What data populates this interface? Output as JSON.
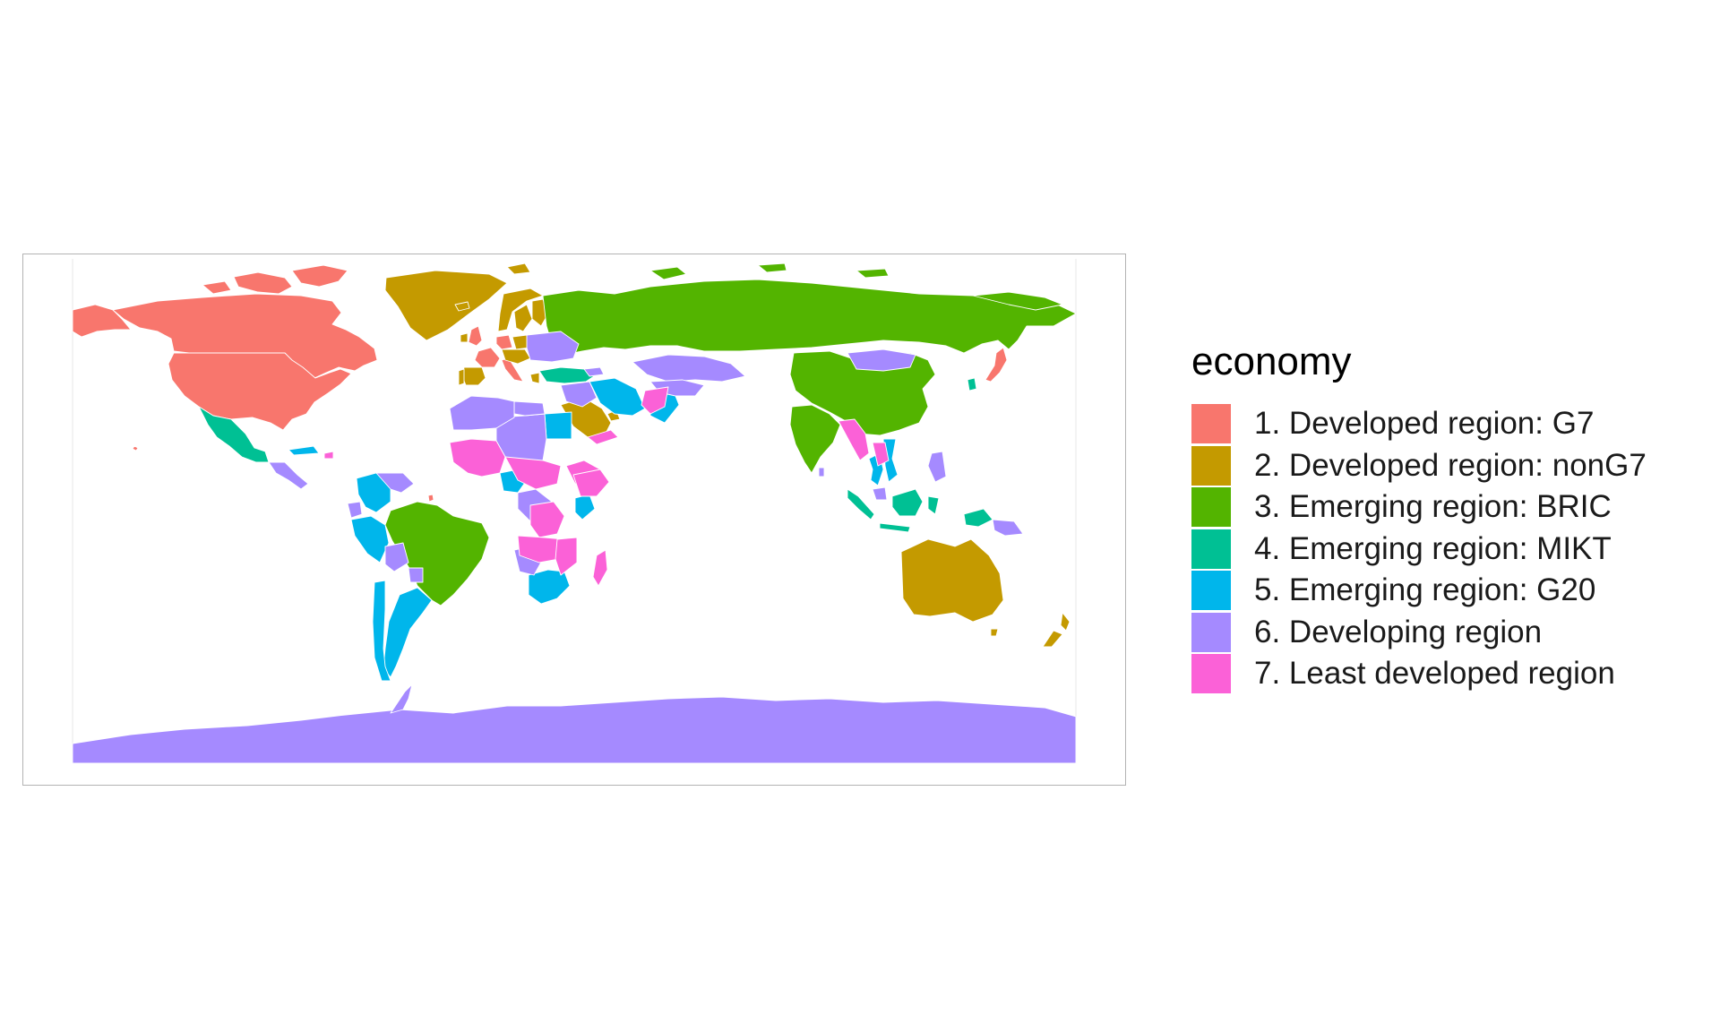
{
  "legend": {
    "title": "economy",
    "items": [
      {
        "label": "1. Developed region: G7",
        "color": "#F8766D"
      },
      {
        "label": "2. Developed region: nonG7",
        "color": "#C49A00"
      },
      {
        "label": "3. Emerging region: BRIC",
        "color": "#53B400"
      },
      {
        "label": "4. Emerging region: MIKT",
        "color": "#00C094"
      },
      {
        "label": "5. Emerging region: G20",
        "color": "#00B6EB"
      },
      {
        "label": "6. Developing region",
        "color": "#A58AFF"
      },
      {
        "label": "7. Least developed region",
        "color": "#FB61D7"
      }
    ]
  },
  "map": {
    "projection": "equirectangular",
    "lon_range": [
      -180,
      180
    ],
    "lat_range": [
      -90,
      83.6
    ],
    "regions": [
      {
        "name": "Canada",
        "category": 0
      },
      {
        "name": "Canadian Arctic Islands",
        "category": 0
      },
      {
        "name": "United States",
        "category": 0
      },
      {
        "name": "Alaska",
        "category": 0
      },
      {
        "name": "Hawaii",
        "category": 0
      },
      {
        "name": "France",
        "category": 0
      },
      {
        "name": "United Kingdom",
        "category": 0
      },
      {
        "name": "Germany",
        "category": 0
      },
      {
        "name": "Italy",
        "category": 0
      },
      {
        "name": "Japan",
        "category": 0
      },
      {
        "name": "French Guiana",
        "category": 0
      },
      {
        "name": "Greenland",
        "category": 1
      },
      {
        "name": "Iceland",
        "category": 1
      },
      {
        "name": "Norway",
        "category": 1
      },
      {
        "name": "Sweden",
        "category": 1
      },
      {
        "name": "Finland",
        "category": 1
      },
      {
        "name": "Spain",
        "category": 1
      },
      {
        "name": "Portugal",
        "category": 1
      },
      {
        "name": "Ireland",
        "category": 1
      },
      {
        "name": "Poland",
        "category": 1
      },
      {
        "name": "Central Europe",
        "category": 1
      },
      {
        "name": "Greece",
        "category": 1
      },
      {
        "name": "Saudi Arabia",
        "category": 1
      },
      {
        "name": "Gulf States",
        "category": 1
      },
      {
        "name": "Australia",
        "category": 1
      },
      {
        "name": "Tasmania",
        "category": 1
      },
      {
        "name": "New Zealand North",
        "category": 1
      },
      {
        "name": "New Zealand South",
        "category": 1
      },
      {
        "name": "Svalbard",
        "category": 1
      },
      {
        "name": "Russia",
        "category": 2
      },
      {
        "name": "Russian Arctic Islands",
        "category": 2
      },
      {
        "name": "China",
        "category": 2
      },
      {
        "name": "India",
        "category": 2
      },
      {
        "name": "Brazil",
        "category": 2
      },
      {
        "name": "Chukotka",
        "category": 2
      },
      {
        "name": "Mexico",
        "category": 3
      },
      {
        "name": "Turkey",
        "category": 3
      },
      {
        "name": "South Korea",
        "category": 3
      },
      {
        "name": "Indonesia Sumatra",
        "category": 3
      },
      {
        "name": "Indonesia Java",
        "category": 3
      },
      {
        "name": "Indonesia Borneo",
        "category": 3
      },
      {
        "name": "Indonesia Sulawesi",
        "category": 3
      },
      {
        "name": "Indonesia Papua",
        "category": 3
      },
      {
        "name": "Argentina",
        "category": 4
      },
      {
        "name": "Chile",
        "category": 4
      },
      {
        "name": "Colombia",
        "category": 4
      },
      {
        "name": "Peru",
        "category": 4
      },
      {
        "name": "Egypt",
        "category": 4
      },
      {
        "name": "Iran",
        "category": 4
      },
      {
        "name": "Pakistan",
        "category": 4
      },
      {
        "name": "Nigeria",
        "category": 4
      },
      {
        "name": "Kenya",
        "category": 4
      },
      {
        "name": "South Africa",
        "category": 4
      },
      {
        "name": "Thailand",
        "category": 4
      },
      {
        "name": "Vietnam",
        "category": 4
      },
      {
        "name": "Cuba",
        "category": 4
      },
      {
        "name": "Antarctica",
        "category": 5
      },
      {
        "name": "Antarctic Peninsula",
        "category": 5
      },
      {
        "name": "Kazakhstan",
        "category": 5
      },
      {
        "name": "Mongolia",
        "category": 5
      },
      {
        "name": "Eastern Europe",
        "category": 5
      },
      {
        "name": "Caucasus",
        "category": 5
      },
      {
        "name": "Central Asia",
        "category": 5
      },
      {
        "name": "Iraq Syria",
        "category": 5
      },
      {
        "name": "North Africa",
        "category": 5
      },
      {
        "name": "Libya",
        "category": 5
      },
      {
        "name": "Algeria Morocco",
        "category": 5
      },
      {
        "name": "Central Africa",
        "category": 5
      },
      {
        "name": "Southern Africa",
        "category": 5
      },
      {
        "name": "Central America",
        "category": 5
      },
      {
        "name": "Venezuela",
        "category": 5
      },
      {
        "name": "Bolivia",
        "category": 5
      },
      {
        "name": "Ecuador",
        "category": 5
      },
      {
        "name": "Paraguay",
        "category": 5
      },
      {
        "name": "Philippines",
        "category": 5
      },
      {
        "name": "Papua New Guinea",
        "category": 5
      },
      {
        "name": "Sri Lanka",
        "category": 5
      },
      {
        "name": "Malaysia",
        "category": 5
      },
      {
        "name": "West Africa",
        "category": 6
      },
      {
        "name": "Sahel",
        "category": 6
      },
      {
        "name": "East Africa",
        "category": 6
      },
      {
        "name": "Ethiopia",
        "category": 6
      },
      {
        "name": "DR Congo",
        "category": 6
      },
      {
        "name": "Angola Zambia",
        "category": 6
      },
      {
        "name": "Mozambique",
        "category": 6
      },
      {
        "name": "Madagascar",
        "category": 6
      },
      {
        "name": "Afghanistan",
        "category": 6
      },
      {
        "name": "Yemen",
        "category": 6
      },
      {
        "name": "Bangladesh Myanmar",
        "category": 6
      },
      {
        "name": "Laos Cambodia",
        "category": 6
      },
      {
        "name": "Haiti",
        "category": 6
      }
    ]
  }
}
